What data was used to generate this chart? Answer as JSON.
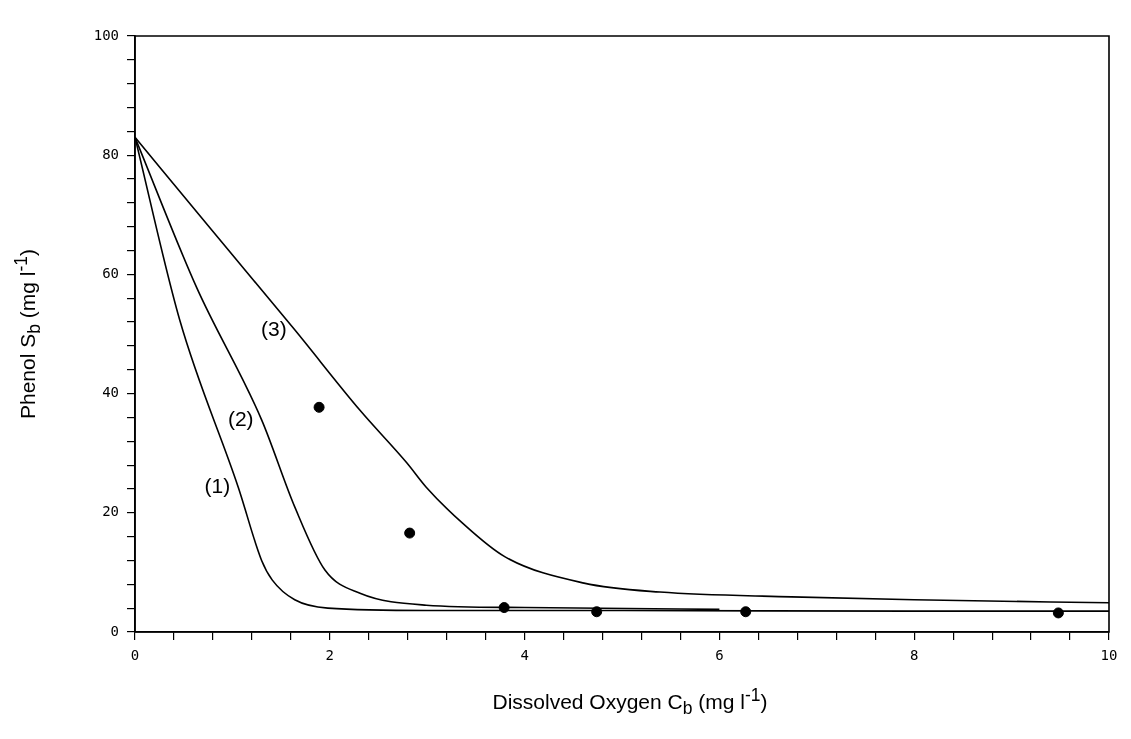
{
  "chart_data": {
    "type": "line",
    "xlabel": "Dissolved Oxygen  C$_{b}$  (mg l$^{-1}$)",
    "ylabel": "Phenol  S$_{b}$  (mg l$^{-1}$)",
    "xlim": [
      0,
      10
    ],
    "ylim": [
      0,
      100
    ],
    "xticks": [
      0,
      {
        "value": 0.4,
        "label": null
      },
      {
        "value": 0.8,
        "label": null
      },
      {
        "value": 1.2,
        "label": null
      },
      {
        "value": 1.6,
        "label": null
      },
      2,
      {
        "value": 2.4,
        "label": null
      },
      {
        "value": 2.8,
        "label": null
      },
      {
        "value": 3.2,
        "label": null
      },
      {
        "value": 3.6,
        "label": null
      },
      4,
      {
        "value": 4.4,
        "label": null
      },
      {
        "value": 4.8,
        "label": null
      },
      {
        "value": 5.2,
        "label": null
      },
      {
        "value": 5.6,
        "label": null
      },
      6,
      {
        "value": 6.4,
        "label": null
      },
      {
        "value": 6.8,
        "label": null
      },
      {
        "value": 7.2,
        "label": null
      },
      {
        "value": 7.6,
        "label": null
      },
      8,
      {
        "value": 8.4,
        "label": null
      },
      {
        "value": 8.8,
        "label": null
      },
      {
        "value": 9.2,
        "label": null
      },
      {
        "value": 9.6,
        "label": null
      },
      10
    ],
    "yticks": [
      0,
      {
        "value": 4,
        "label": null
      },
      {
        "value": 8,
        "label": null
      },
      {
        "value": 12,
        "label": null
      },
      {
        "value": 16,
        "label": null
      },
      20,
      {
        "value": 24,
        "label": null
      },
      {
        "value": 28,
        "label": null
      },
      {
        "value": 32,
        "label": null
      },
      {
        "value": 36,
        "label": null
      },
      40,
      {
        "value": 44,
        "label": null
      },
      {
        "value": 48,
        "label": null
      },
      {
        "value": 52,
        "label": null
      },
      {
        "value": 56,
        "label": null
      },
      60,
      {
        "value": 64,
        "label": null
      },
      {
        "value": 68,
        "label": null
      },
      {
        "value": 72,
        "label": null
      },
      {
        "value": 76,
        "label": null
      },
      80,
      {
        "value": 84,
        "label": null
      },
      {
        "value": 88,
        "label": null
      },
      {
        "value": 92,
        "label": null
      },
      {
        "value": 96,
        "label": null
      },
      100
    ],
    "grid": false,
    "legend": false,
    "line_style": "solid",
    "series": [
      {
        "name": "(1)",
        "color": "#000000",
        "x": [
          0,
          0.46,
          1.06,
          1.3,
          1.41,
          1.64,
          1.98,
          3,
          5,
          8,
          10
        ],
        "values": [
          83,
          52.3,
          24.3,
          12,
          8.7,
          5.4,
          4.0,
          3.6,
          3.6,
          3.5,
          3.5
        ]
      },
      {
        "name": "(2)",
        "color": "#000000",
        "x": [
          0,
          0.63,
          1.3,
          1.64,
          1.95,
          2.31,
          2.99,
          4,
          6
        ],
        "values": [
          83,
          57.9,
          35.6,
          21,
          10.4,
          6.5,
          4.5,
          4.1,
          3.8
        ]
      },
      {
        "name": "(3)",
        "color": "#000000",
        "x": [
          0,
          0.79,
          1.64,
          2.31,
          2.79,
          2.99,
          3.36,
          3.8,
          4.61,
          5.39,
          6.74,
          8,
          10
        ],
        "values": [
          83,
          67.4,
          50.7,
          37.2,
          28.4,
          24.3,
          18.3,
          12.6,
          8.2,
          6.7,
          5.9,
          5.4,
          4.9
        ]
      },
      {
        "type": "scatter",
        "color": "#000000",
        "marker": "circle",
        "x": [
          1.89,
          2.82,
          3.79,
          4.74,
          6.27,
          9.48
        ],
        "values": [
          37.7,
          16.6,
          4.1,
          3.4,
          3.4,
          3.2
        ]
      }
    ]
  }
}
